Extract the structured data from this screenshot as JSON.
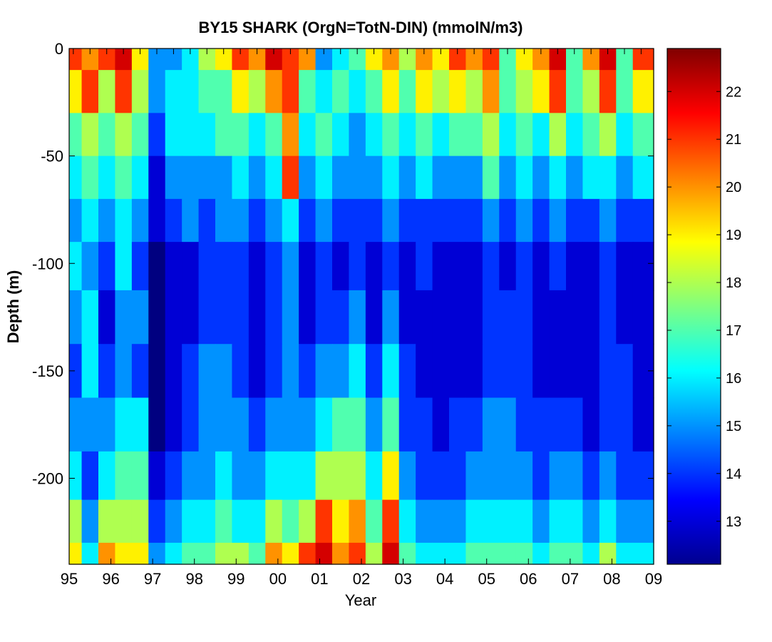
{
  "chart_data": {
    "type": "heatmap",
    "title": "BY15 SHARK (OrgN=TotN-DIN) (mmolN/m3)",
    "xlabel": "Year",
    "ylabel": "Depth (m)",
    "x_ticks": [
      "95",
      "96",
      "97",
      "98",
      "99",
      "00",
      "01",
      "02",
      "03",
      "04",
      "05",
      "06",
      "07",
      "08",
      "09"
    ],
    "xlim": [
      1995.0,
      2009.0
    ],
    "y_ticks": [
      0,
      -50,
      -100,
      -150,
      -200
    ],
    "ylim": [
      -240,
      0
    ],
    "colorbar": {
      "ticks": [
        13,
        14,
        15,
        16,
        17,
        18,
        19,
        20,
        21,
        22
      ],
      "range": [
        12.1,
        22.9
      ],
      "colormap": "jet"
    },
    "grid": false,
    "years": [
      1995.1,
      1995.5,
      1995.9,
      1996.3,
      1996.7,
      1997.1,
      1997.5,
      1997.9,
      1998.3,
      1998.7,
      1999.1,
      1999.5,
      1999.9,
      2000.3,
      2000.7,
      2001.1,
      2001.5,
      2001.9,
      2002.3,
      2002.7,
      2003.1,
      2003.5,
      2003.9,
      2004.3,
      2004.7,
      2005.1,
      2005.5,
      2005.9,
      2006.3,
      2006.7,
      2007.1,
      2007.5,
      2007.9,
      2008.3,
      2008.7
    ],
    "depths": [
      0,
      -20,
      -40,
      -60,
      -80,
      -100,
      -125,
      -150,
      -175,
      -200,
      -220,
      -240
    ],
    "values": [
      [
        21,
        20,
        21,
        22,
        19,
        15,
        15,
        16,
        18,
        19,
        21,
        20,
        22,
        21,
        20,
        15,
        16,
        17,
        19,
        20,
        18,
        20,
        19,
        21,
        20,
        21,
        17,
        19,
        20,
        22,
        17,
        20,
        22,
        17,
        21
      ],
      [
        19,
        21,
        18,
        21,
        18,
        15,
        16,
        16,
        17,
        17,
        19,
        18,
        20,
        21,
        17,
        16,
        17,
        16,
        17,
        19,
        17,
        19,
        18,
        19,
        18,
        20,
        17,
        18,
        19,
        21,
        17,
        18,
        21,
        17,
        19
      ],
      [
        17,
        18,
        17,
        18,
        17,
        14,
        16,
        16,
        16,
        17,
        17,
        16,
        17,
        20,
        16,
        17,
        16,
        15,
        16,
        17,
        16,
        17,
        16,
        17,
        17,
        18,
        16,
        17,
        16,
        18,
        16,
        17,
        18,
        16,
        17
      ],
      [
        16,
        17,
        16,
        17,
        16,
        13,
        15,
        15,
        15,
        15,
        16,
        15,
        16,
        21,
        15,
        16,
        15,
        15,
        15,
        16,
        15,
        16,
        15,
        15,
        15,
        17,
        15,
        16,
        15,
        16,
        15,
        16,
        16,
        15,
        16
      ],
      [
        15,
        16,
        15,
        16,
        15,
        13,
        14,
        15,
        14,
        15,
        15,
        14,
        15,
        16,
        14,
        15,
        14,
        14,
        14,
        15,
        14,
        14,
        14,
        14,
        14,
        15,
        14,
        15,
        14,
        15,
        14,
        14,
        15,
        14,
        14
      ],
      [
        16,
        15,
        14,
        16,
        14,
        12,
        13,
        13,
        14,
        14,
        14,
        13,
        14,
        15,
        13,
        14,
        13,
        14,
        13,
        14,
        13,
        14,
        13,
        13,
        13,
        14,
        13,
        14,
        13,
        14,
        13,
        13,
        14,
        13,
        13
      ],
      [
        15,
        16,
        13,
        15,
        15,
        12,
        13,
        13,
        14,
        14,
        14,
        13,
        14,
        15,
        13,
        14,
        14,
        15,
        13,
        15,
        13,
        13,
        13,
        13,
        13,
        14,
        14,
        14,
        13,
        13,
        13,
        13,
        14,
        13,
        13
      ],
      [
        14,
        16,
        14,
        15,
        14,
        12,
        13,
        14,
        15,
        15,
        14,
        13,
        14,
        15,
        14,
        15,
        15,
        16,
        14,
        16,
        14,
        13,
        13,
        13,
        13,
        14,
        14,
        14,
        13,
        13,
        13,
        13,
        14,
        14,
        13
      ],
      [
        15,
        15,
        15,
        16,
        16,
        12,
        13,
        14,
        15,
        15,
        15,
        14,
        15,
        15,
        15,
        16,
        17,
        17,
        15,
        17,
        14,
        14,
        13,
        14,
        14,
        15,
        15,
        14,
        14,
        14,
        14,
        13,
        14,
        14,
        13
      ],
      [
        16,
        14,
        16,
        17,
        17,
        13,
        14,
        15,
        15,
        16,
        15,
        15,
        16,
        16,
        16,
        18,
        18,
        18,
        16,
        19,
        15,
        14,
        14,
        14,
        15,
        15,
        15,
        15,
        14,
        15,
        15,
        14,
        15,
        14,
        14
      ],
      [
        18,
        15,
        18,
        18,
        18,
        14,
        15,
        16,
        16,
        17,
        16,
        16,
        18,
        17,
        18,
        21,
        19,
        20,
        17,
        21,
        16,
        15,
        15,
        15,
        16,
        16,
        16,
        16,
        15,
        16,
        16,
        15,
        16,
        15,
        15
      ],
      [
        19,
        16,
        20,
        19,
        19,
        15,
        16,
        17,
        17,
        18,
        18,
        17,
        20,
        19,
        21,
        22,
        20,
        21,
        18,
        22,
        17,
        16,
        16,
        16,
        17,
        17,
        17,
        17,
        16,
        17,
        17,
        16,
        18,
        16,
        16
      ]
    ]
  }
}
